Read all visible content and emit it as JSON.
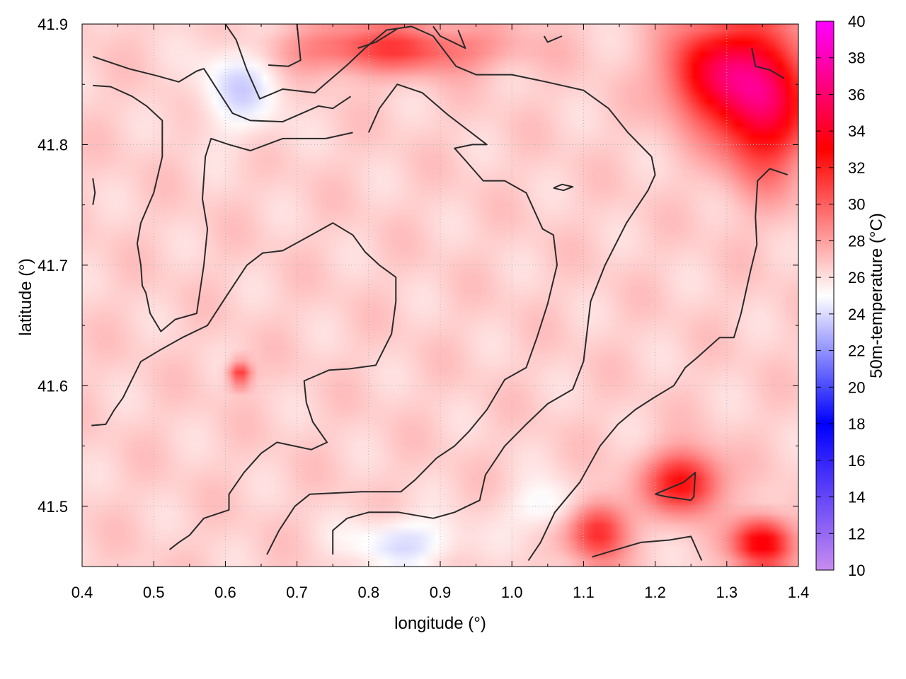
{
  "chart_data": {
    "type": "heatmap",
    "xlabel": "longitude (°)",
    "ylabel": "latitude (°)",
    "colorbar_label": "50m-temperature (°C)",
    "xlim": [
      0.4,
      1.4
    ],
    "ylim": [
      41.45,
      41.9
    ],
    "x_ticks": [
      "0.4",
      "0.5",
      "0.6",
      "0.7",
      "0.8",
      "0.9",
      "1.0",
      "1.1",
      "1.2",
      "1.3",
      "1.4"
    ],
    "y_ticks": [
      "41.5",
      "41.6",
      "41.7",
      "41.8",
      "41.9"
    ],
    "colorbar_ticks": [
      "10",
      "12",
      "14",
      "16",
      "18",
      "20",
      "22",
      "24",
      "26",
      "28",
      "30",
      "32",
      "34",
      "36",
      "38",
      "40"
    ],
    "colorbar_range": [
      10,
      40
    ],
    "grid": true,
    "colorscale": [
      {
        "t": 10,
        "color": "#c88cf0"
      },
      {
        "t": 18,
        "color": "#0000ff"
      },
      {
        "t": 25,
        "color": "#ffffff"
      },
      {
        "t": 33,
        "color": "#ff0000"
      },
      {
        "t": 40,
        "color": "#ff00ff"
      }
    ],
    "background_temperature": 26.5,
    "hot_regions": [
      {
        "lon": 1.35,
        "lat": 41.84,
        "rx": 0.06,
        "ry": 0.06,
        "temp": 36
      },
      {
        "lon": 1.27,
        "lat": 41.86,
        "rx": 0.06,
        "ry": 0.04,
        "temp": 33
      },
      {
        "lon": 1.24,
        "lat": 41.52,
        "rx": 0.05,
        "ry": 0.025,
        "temp": 33
      },
      {
        "lon": 1.12,
        "lat": 41.48,
        "rx": 0.04,
        "ry": 0.025,
        "temp": 32
      },
      {
        "lon": 1.35,
        "lat": 41.47,
        "rx": 0.04,
        "ry": 0.02,
        "temp": 34
      },
      {
        "lon": 0.83,
        "lat": 41.88,
        "rx": 0.15,
        "ry": 0.02,
        "temp": 31
      },
      {
        "lon": 0.62,
        "lat": 41.61,
        "rx": 0.015,
        "ry": 0.01,
        "temp": 32
      }
    ],
    "cool_regions": [
      {
        "lon": 0.62,
        "lat": 41.85,
        "rx": 0.06,
        "ry": 0.04,
        "temp": 24
      },
      {
        "lon": 0.85,
        "lat": 41.47,
        "rx": 0.08,
        "ry": 0.02,
        "temp": 24
      },
      {
        "lon": 1.05,
        "lat": 41.5,
        "rx": 0.05,
        "ry": 0.02,
        "temp": 24.5
      }
    ],
    "contours": [
      [
        [
          0.415,
          41.873
        ],
        [
          0.465,
          41.863
        ],
        [
          0.505,
          41.857
        ],
        [
          0.535,
          41.852
        ],
        [
          0.56,
          41.861
        ],
        [
          0.57,
          41.863
        ],
        [
          0.61,
          41.826
        ],
        [
          0.635,
          41.82
        ],
        [
          0.68,
          41.819
        ],
        [
          0.73,
          41.832
        ],
        [
          0.75,
          41.83
        ],
        [
          0.775,
          41.84
        ]
      ],
      [
        [
          0.415,
          41.849
        ],
        [
          0.44,
          41.848
        ],
        [
          0.47,
          41.84
        ],
        [
          0.49,
          41.832
        ],
        [
          0.512,
          41.82
        ],
        [
          0.512,
          41.79
        ],
        [
          0.5,
          41.76
        ],
        [
          0.482,
          41.735
        ],
        [
          0.477,
          41.718
        ],
        [
          0.482,
          41.7
        ],
        [
          0.484,
          41.683
        ],
        [
          0.489,
          41.677
        ],
        [
          0.495,
          41.66
        ],
        [
          0.509,
          41.646
        ],
        [
          0.51,
          41.645
        ],
        [
          0.53,
          41.655
        ],
        [
          0.56,
          41.66
        ],
        [
          0.57,
          41.7
        ],
        [
          0.575,
          41.73
        ],
        [
          0.568,
          41.755
        ],
        [
          0.572,
          41.79
        ],
        [
          0.58,
          41.805
        ],
        [
          0.605,
          41.8
        ],
        [
          0.635,
          41.795
        ],
        [
          0.68,
          41.805
        ],
        [
          0.74,
          41.805
        ],
        [
          0.778,
          41.81
        ]
      ],
      [
        [
          0.413,
          41.567
        ],
        [
          0.433,
          41.568
        ],
        [
          0.445,
          41.58
        ],
        [
          0.457,
          41.59
        ],
        [
          0.482,
          41.62
        ],
        [
          0.51,
          41.63
        ],
        [
          0.54,
          41.64
        ],
        [
          0.575,
          41.65
        ],
        [
          0.6,
          41.673
        ],
        [
          0.63,
          41.7
        ],
        [
          0.652,
          41.71
        ],
        [
          0.68,
          41.712
        ],
        [
          0.72,
          41.725
        ],
        [
          0.75,
          41.735
        ],
        [
          0.778,
          41.725
        ],
        [
          0.795,
          41.711
        ],
        [
          0.815,
          41.7
        ],
        [
          0.838,
          41.69
        ],
        [
          0.838,
          41.67
        ],
        [
          0.832,
          41.643
        ],
        [
          0.81,
          41.617
        ],
        [
          0.773,
          41.614
        ],
        [
          0.745,
          41.613
        ],
        [
          0.71,
          41.604
        ],
        [
          0.713,
          41.586
        ],
        [
          0.722,
          41.57
        ],
        [
          0.742,
          41.553
        ],
        [
          0.72,
          41.547
        ],
        [
          0.672,
          41.553
        ],
        [
          0.65,
          41.544
        ],
        [
          0.626,
          41.528
        ],
        [
          0.605,
          41.51
        ],
        [
          0.605,
          41.497
        ],
        [
          0.57,
          41.49
        ],
        [
          0.55,
          41.476
        ],
        [
          0.535,
          41.47
        ],
        [
          0.522,
          41.464
        ]
      ],
      [
        [
          0.658,
          41.46
        ],
        [
          0.675,
          41.48
        ],
        [
          0.697,
          41.5
        ],
        [
          0.718,
          41.51
        ],
        [
          0.79,
          41.512
        ],
        [
          0.845,
          41.512
        ],
        [
          0.865,
          41.522
        ],
        [
          0.895,
          41.54
        ],
        [
          0.92,
          41.55
        ],
        [
          0.94,
          41.562
        ],
        [
          0.965,
          41.58
        ],
        [
          0.99,
          41.605
        ],
        [
          1.02,
          41.615
        ],
        [
          1.035,
          41.64
        ],
        [
          1.05,
          41.668
        ],
        [
          1.063,
          41.7
        ],
        [
          1.058,
          41.725
        ],
        [
          1.043,
          41.73
        ],
        [
          1.02,
          41.76
        ],
        [
          0.99,
          41.77
        ],
        [
          0.96,
          41.77
        ],
        [
          0.935,
          41.787
        ],
        [
          0.92,
          41.797
        ],
        [
          0.945,
          41.8
        ],
        [
          0.965,
          41.8
        ],
        [
          0.91,
          41.825
        ],
        [
          0.875,
          41.843
        ],
        [
          0.84,
          41.85
        ],
        [
          0.815,
          41.83
        ],
        [
          0.8,
          41.81
        ]
      ],
      [
        [
          0.75,
          41.46
        ],
        [
          0.75,
          41.48
        ],
        [
          0.77,
          41.49
        ],
        [
          0.8,
          41.495
        ],
        [
          0.842,
          41.495
        ],
        [
          0.89,
          41.49
        ],
        [
          0.92,
          41.495
        ],
        [
          0.955,
          41.505
        ],
        [
          0.963,
          41.526
        ],
        [
          0.99,
          41.55
        ],
        [
          1.02,
          41.568
        ],
        [
          1.05,
          41.585
        ],
        [
          1.085,
          41.597
        ],
        [
          1.1,
          41.62
        ],
        [
          1.11,
          41.67
        ],
        [
          1.13,
          41.7
        ],
        [
          1.16,
          41.735
        ],
        [
          1.19,
          41.762
        ],
        [
          1.2,
          41.775
        ],
        [
          1.195,
          41.79
        ],
        [
          1.162,
          41.81
        ],
        [
          1.135,
          41.83
        ],
        [
          1.1,
          41.845
        ],
        [
          1.048,
          41.852
        ],
        [
          1.0,
          41.858
        ],
        [
          0.95,
          41.858
        ],
        [
          0.922,
          41.865
        ],
        [
          0.89,
          41.89
        ],
        [
          0.86,
          41.898
        ],
        [
          0.825,
          41.895
        ],
        [
          0.795,
          41.88
        ],
        [
          0.77,
          41.866
        ],
        [
          0.725,
          41.843
        ],
        [
          0.68,
          41.846
        ],
        [
          0.648,
          41.838
        ],
        [
          0.63,
          41.862
        ],
        [
          0.615,
          41.887
        ],
        [
          0.6,
          41.9
        ]
      ],
      [
        [
          1.023,
          41.455
        ],
        [
          1.04,
          41.47
        ],
        [
          1.06,
          41.495
        ],
        [
          1.095,
          41.52
        ],
        [
          1.123,
          41.55
        ],
        [
          1.148,
          41.568
        ],
        [
          1.172,
          41.58
        ],
        [
          1.198,
          41.59
        ],
        [
          1.226,
          41.6
        ],
        [
          1.242,
          41.615
        ],
        [
          1.258,
          41.623
        ],
        [
          1.29,
          41.64
        ],
        [
          1.31,
          41.64
        ],
        [
          1.32,
          41.66
        ],
        [
          1.333,
          41.695
        ],
        [
          1.342,
          41.717
        ],
        [
          1.34,
          41.74
        ],
        [
          1.343,
          41.77
        ],
        [
          1.36,
          41.78
        ],
        [
          1.385,
          41.775
        ]
      ],
      [
        [
          1.2,
          41.51
        ],
        [
          1.24,
          41.52
        ],
        [
          1.256,
          41.528
        ],
        [
          1.254,
          41.508
        ],
        [
          1.25,
          41.505
        ],
        [
          1.215,
          41.508
        ],
        [
          1.2,
          41.51
        ]
      ],
      [
        [
          1.112,
          41.458
        ],
        [
          1.14,
          41.463
        ],
        [
          1.18,
          41.47
        ],
        [
          1.22,
          41.472
        ],
        [
          1.25,
          41.475
        ],
        [
          1.265,
          41.455
        ]
      ],
      [
        [
          1.058,
          41.764
        ],
        [
          1.07,
          41.767
        ],
        [
          1.085,
          41.765
        ],
        [
          1.072,
          41.762
        ],
        [
          1.058,
          41.764
        ]
      ],
      [
        [
          1.335,
          41.88
        ],
        [
          1.34,
          41.865
        ],
        [
          1.36,
          41.862
        ],
        [
          1.38,
          41.855
        ]
      ],
      [
        [
          0.415,
          41.772
        ],
        [
          0.418,
          41.76
        ],
        [
          0.415,
          41.75
        ]
      ],
      [
        [
          0.84,
          41.896
        ],
        [
          0.81,
          41.885
        ],
        [
          0.785,
          41.88
        ]
      ],
      [
        [
          0.7,
          41.9
        ],
        [
          0.705,
          41.87
        ],
        [
          0.688,
          41.865
        ],
        [
          0.66,
          41.866
        ]
      ],
      [
        [
          0.925,
          41.895
        ],
        [
          0.935,
          41.88
        ],
        [
          0.9,
          41.89
        ],
        [
          0.89,
          41.898
        ]
      ],
      [
        [
          1.07,
          41.89
        ],
        [
          1.05,
          41.885
        ],
        [
          1.045,
          41.89
        ]
      ]
    ]
  }
}
